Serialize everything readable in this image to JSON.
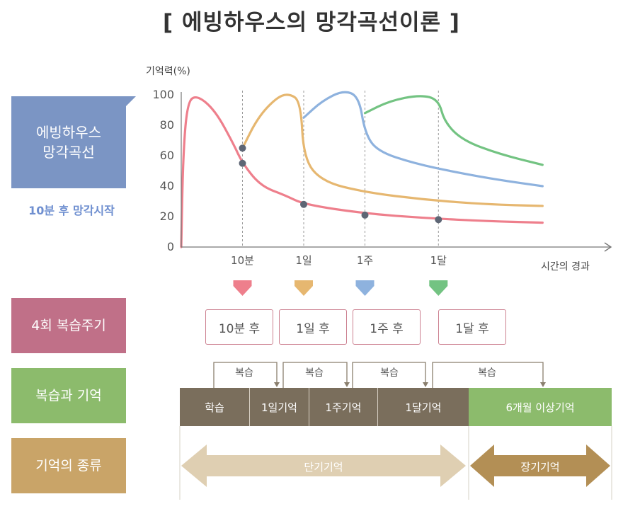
{
  "title": "[ 에빙하우스의 망각곡선이론 ]",
  "side_labels": {
    "curve": [
      "에빙하우스",
      "망각곡선"
    ],
    "curve_sub": "10분 후 망각시작",
    "review": "4회 복습주기",
    "memory": "복습과 기억",
    "types": "기억의 종류"
  },
  "colors": {
    "curve_label": "#7b95c4",
    "review_label": "#c07088",
    "memory_label": "#8cbb6c",
    "types_label": "#c9a468",
    "pink": "#ee7f8c",
    "yellow": "#e6b770",
    "blue": "#8eb2de",
    "green": "#73c382",
    "segment": "#7a6e5c",
    "short_arrow": "#dfcfb2",
    "long_arrow": "#b38f55"
  },
  "chart_data": {
    "type": "line",
    "ylabel": "기억력(%)",
    "xlabel": "시간의 경과",
    "ylim": [
      0,
      100
    ],
    "yticks": [
      0,
      20,
      40,
      60,
      80,
      100
    ],
    "xticks": [
      "10분",
      "1일",
      "1주",
      "1달"
    ],
    "series": [
      {
        "color": "#ee7f8c",
        "desc": "learning then decay without review",
        "points": [
          [
            0,
            0
          ],
          [
            0.03,
            60
          ],
          [
            0.1,
            95
          ],
          [
            0.25,
            100
          ],
          [
            0.55,
            90
          ],
          [
            0.85,
            68
          ],
          [
            1,
            55
          ],
          [
            1.3,
            40
          ],
          [
            1.7,
            34
          ],
          [
            2,
            28
          ],
          [
            3,
            22
          ],
          [
            4,
            19
          ],
          [
            5,
            17
          ],
          [
            5.9,
            16
          ]
        ]
      },
      {
        "color": "#e6b770",
        "desc": "review at 10min",
        "points": [
          [
            1,
            65
          ],
          [
            1.25,
            85
          ],
          [
            1.55,
            98
          ],
          [
            1.75,
            101
          ],
          [
            1.95,
            96
          ],
          [
            2,
            58
          ],
          [
            2.3,
            43
          ],
          [
            3,
            36
          ],
          [
            4,
            31
          ],
          [
            5,
            28
          ],
          [
            5.9,
            27
          ]
        ]
      },
      {
        "color": "#8eb2de",
        "desc": "review at 1 day",
        "points": [
          [
            2,
            85
          ],
          [
            2.3,
            96
          ],
          [
            2.65,
            103
          ],
          [
            2.9,
            99
          ],
          [
            3,
            75
          ],
          [
            3.2,
            63
          ],
          [
            3.8,
            55
          ],
          [
            4.5,
            49
          ],
          [
            5.2,
            44
          ],
          [
            5.9,
            40
          ]
        ]
      },
      {
        "color": "#73c382",
        "desc": "review at 1 week",
        "points": [
          [
            3,
            88
          ],
          [
            3.4,
            96
          ],
          [
            3.9,
            100
          ],
          [
            4.2,
            97
          ],
          [
            4.3,
            82
          ],
          [
            4.6,
            70
          ],
          [
            5.2,
            61
          ],
          [
            5.9,
            54
          ]
        ]
      }
    ],
    "review_points": [
      [
        1,
        65
      ],
      [
        1,
        55
      ],
      [
        2,
        28
      ],
      [
        3,
        21
      ],
      [
        4.2,
        18
      ]
    ]
  },
  "review_schedule": [
    "10분 후",
    "1일 후",
    "1주 후",
    "1달 후"
  ],
  "review_label": "복습",
  "memory_segments": [
    "학습",
    "1일기억",
    "1주기억",
    "1달기억",
    "6개월 이상기억"
  ],
  "memory_types": {
    "short": "단기기억",
    "long": "장기기억"
  }
}
